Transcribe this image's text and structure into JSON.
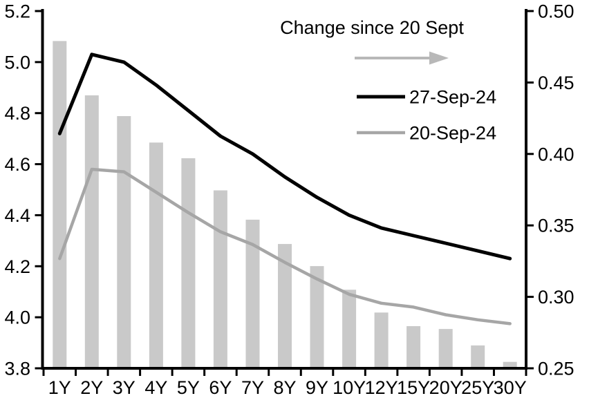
{
  "chart_data": {
    "type": "combo",
    "categories": [
      "1Y",
      "2Y",
      "3Y",
      "4Y",
      "5Y",
      "6Y",
      "7Y",
      "8Y",
      "9Y",
      "10Y",
      "12Y",
      "15Y",
      "20Y",
      "25Y",
      "30Y"
    ],
    "bars": {
      "name": "Change since 20 Sept",
      "yaxis": "right",
      "values": [
        0.479,
        0.441,
        0.4265,
        0.408,
        0.397,
        0.3745,
        0.354,
        0.337,
        0.3215,
        0.305,
        0.289,
        0.2795,
        0.2775,
        0.266,
        0.2545
      ]
    },
    "series": [
      {
        "name": "27-Sep-24",
        "yaxis": "left",
        "color": "#000000",
        "values": [
          4.72,
          5.03,
          5.0,
          4.91,
          4.81,
          4.71,
          4.64,
          4.55,
          4.47,
          4.4,
          4.35,
          4.32,
          4.29,
          4.26,
          4.23
        ]
      },
      {
        "name": "20-Sep-24",
        "yaxis": "left",
        "color": "#a6a6a6",
        "values": [
          4.23,
          4.58,
          4.57,
          4.49,
          4.41,
          4.335,
          4.285,
          4.215,
          4.15,
          4.09,
          4.055,
          4.04,
          4.01,
          3.99,
          3.975
        ]
      }
    ],
    "left_axis": {
      "min": 3.8,
      "max": 5.2,
      "tick_labels": [
        "5.2",
        "5.0",
        "4.8",
        "4.6",
        "4.4",
        "4.2",
        "4.0",
        "3.8"
      ]
    },
    "right_axis": {
      "min": 0.25,
      "max": 0.5,
      "tick_labels": [
        "0.50",
        "0.45",
        "0.40",
        "0.35",
        "0.30",
        "0.25"
      ]
    },
    "legend": {
      "title": "Change since 20 Sept",
      "arrow_icon": "right-arrow",
      "items": [
        {
          "label": "27-Sep-24",
          "swatch": "black-line"
        },
        {
          "label": "20-Sep-24",
          "swatch": "gray-line"
        }
      ],
      "position": "top-center-inside"
    },
    "grid": "off"
  },
  "colors": {
    "bar_fill": "#c9c9c9",
    "line_black": "#000000",
    "line_gray": "#a6a6a6",
    "arrow_gray": "#b8b8b8",
    "axis": "#000000",
    "background": "#ffffff"
  }
}
